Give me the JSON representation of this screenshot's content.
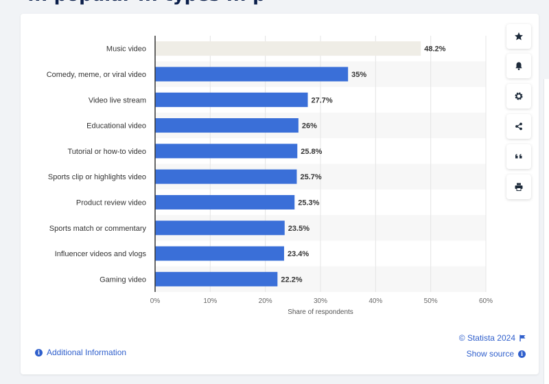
{
  "page": {
    "title_fragment": "... popular ... types ... p"
  },
  "chart_data": {
    "type": "bar",
    "orientation": "horizontal",
    "categories": [
      "Music video",
      "Comedy, meme, or viral video",
      "Video live stream",
      "Educational video",
      "Tutorial or how-to video",
      "Sports clip or highlights video",
      "Product review video",
      "Sports match or commentary",
      "Influencer videos and vlogs",
      "Gaming video"
    ],
    "values": [
      48.2,
      35,
      27.7,
      26,
      25.8,
      25.7,
      25.3,
      23.5,
      23.4,
      22.2
    ],
    "value_labels": [
      "48.2%",
      "35%",
      "27.7%",
      "26%",
      "25.8%",
      "25.7%",
      "25.3%",
      "23.5%",
      "23.4%",
      "22.2%"
    ],
    "highlighted_index": 0,
    "xlabel": "Share of respondents",
    "ylabel": "",
    "xlim": [
      0,
      60
    ],
    "xticks": [
      0,
      10,
      20,
      30,
      40,
      50,
      60
    ],
    "xtick_labels": [
      "0%",
      "10%",
      "20%",
      "30%",
      "40%",
      "50%",
      "60%"
    ],
    "grid": true,
    "colors": {
      "bar": "#3a6fd8",
      "highlight": "#efede6",
      "stripe": "#f7f7f7",
      "grid": "#e4e4e4",
      "axis": "#333333"
    }
  },
  "toolbar": {
    "items": [
      {
        "name": "favorite-button",
        "icon": "star-icon"
      },
      {
        "name": "notification-button",
        "icon": "bell-icon"
      },
      {
        "name": "settings-button",
        "icon": "gear-icon"
      },
      {
        "name": "share-button",
        "icon": "share-icon"
      },
      {
        "name": "cite-button",
        "icon": "quote-icon"
      },
      {
        "name": "print-button",
        "icon": "printer-icon"
      }
    ]
  },
  "footer": {
    "credit": "© Statista 2024",
    "show_source": "Show source",
    "additional_info": "Additional Information"
  }
}
